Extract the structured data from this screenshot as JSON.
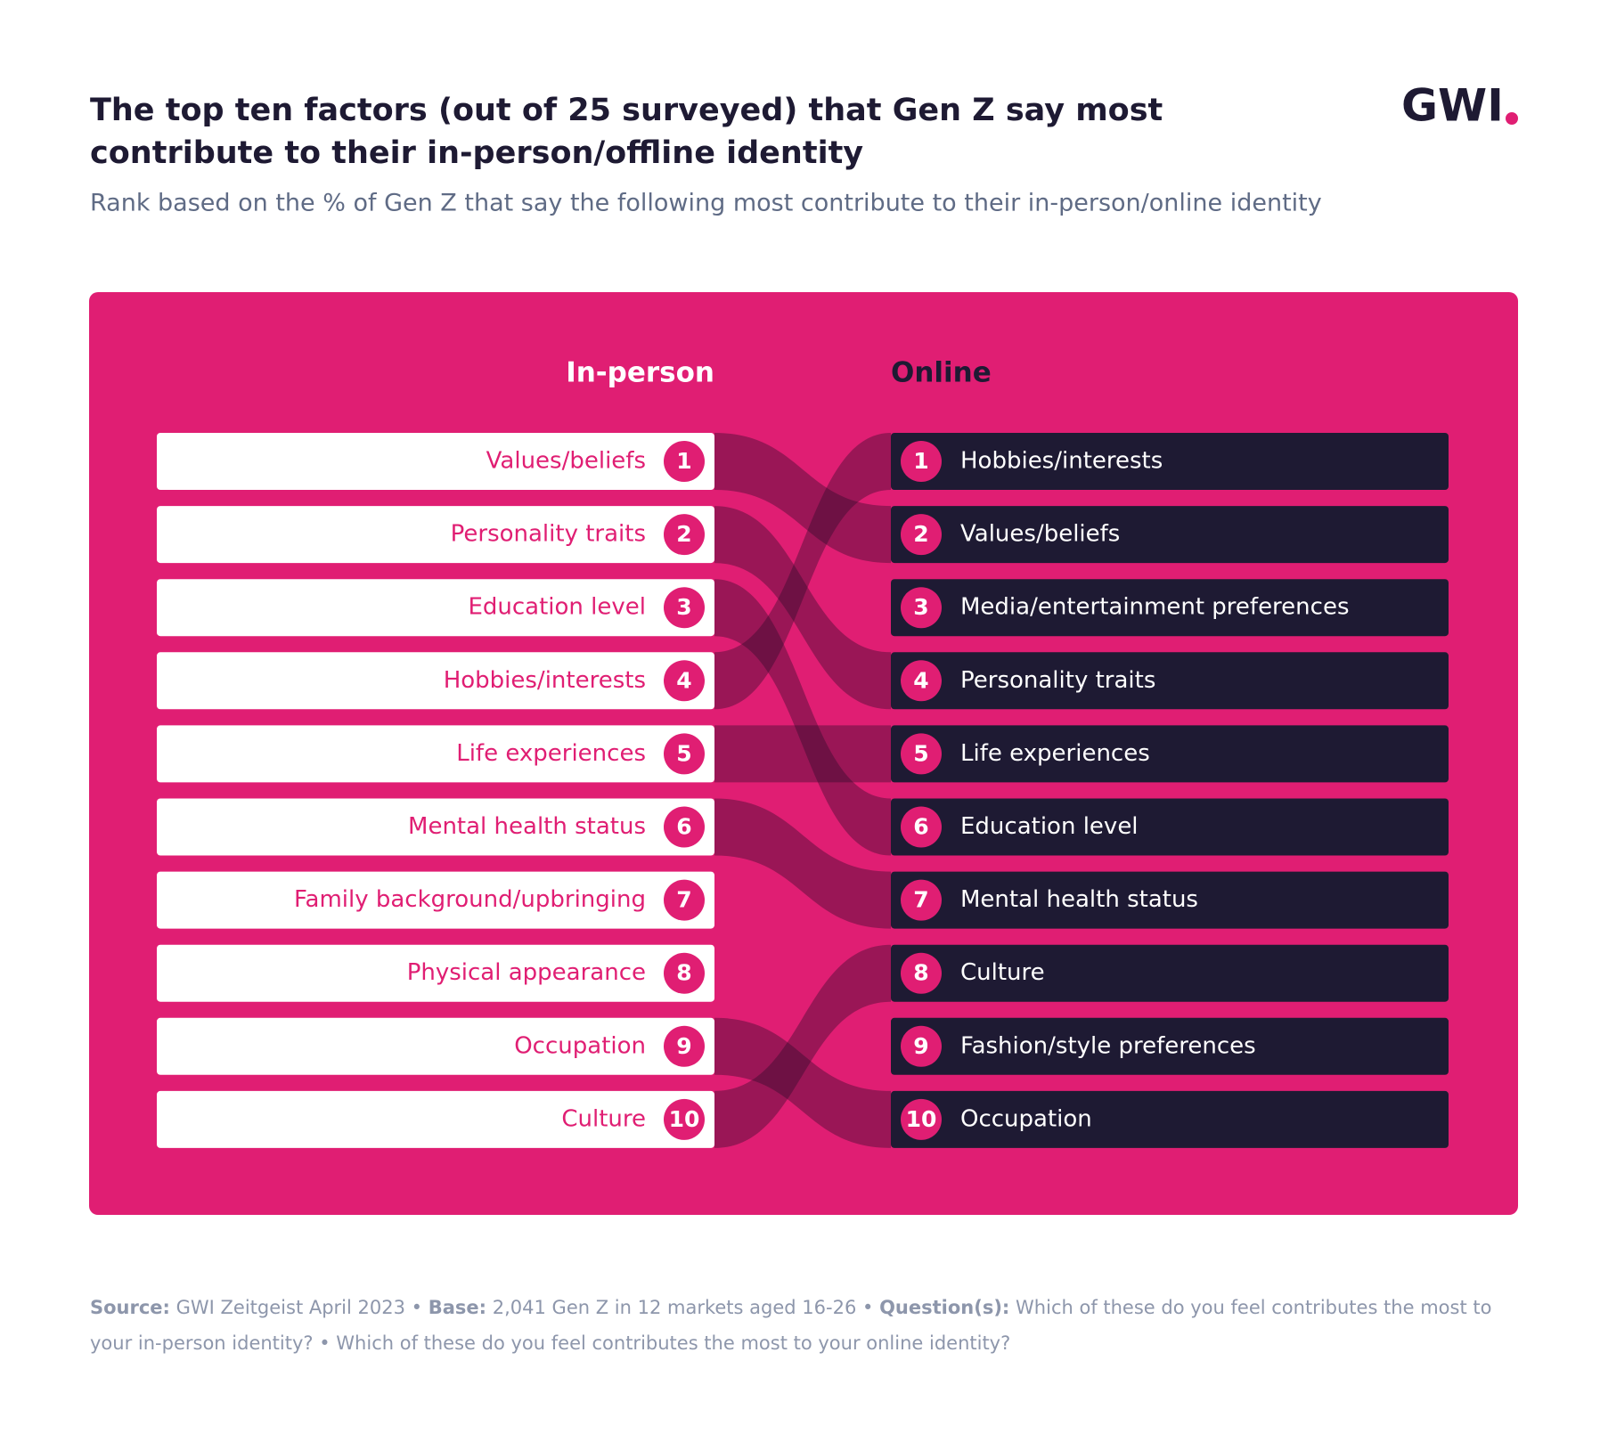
{
  "header": {
    "title_lines": [
      "The top ten factors (out of 25 surveyed) that Gen Z say most",
      "contribute to their in-person/offline identity"
    ],
    "subtitle": "Rank based on the % of Gen Z that say the following most contribute to their in-person/online identity",
    "logo": "GWI"
  },
  "columns": [
    {
      "heading": "In-person",
      "items": [
        {
          "rank": 1,
          "label": "Values/beliefs"
        },
        {
          "rank": 2,
          "label": "Personality traits"
        },
        {
          "rank": 3,
          "label": "Education level"
        },
        {
          "rank": 4,
          "label": "Hobbies/interests"
        },
        {
          "rank": 5,
          "label": "Life experiences"
        },
        {
          "rank": 6,
          "label": "Mental health status"
        },
        {
          "rank": 7,
          "label": "Family background/upbringing"
        },
        {
          "rank": 8,
          "label": "Physical appearance"
        },
        {
          "rank": 9,
          "label": "Occupation"
        },
        {
          "rank": 10,
          "label": "Culture"
        }
      ]
    },
    {
      "heading": "Online",
      "items": [
        {
          "rank": 1,
          "label": "Hobbies/interests"
        },
        {
          "rank": 2,
          "label": "Values/beliefs"
        },
        {
          "rank": 3,
          "label": "Media/entertainment preferences"
        },
        {
          "rank": 4,
          "label": "Personality traits"
        },
        {
          "rank": 5,
          "label": "Life experiences"
        },
        {
          "rank": 6,
          "label": "Education level"
        },
        {
          "rank": 7,
          "label": "Mental health status"
        },
        {
          "rank": 8,
          "label": "Culture"
        },
        {
          "rank": 9,
          "label": "Fashion/style preferences"
        },
        {
          "rank": 10,
          "label": "Occupation"
        }
      ]
    }
  ],
  "footer": {
    "separator": "•",
    "parts": [
      {
        "label": "Source:",
        "text": "GWI Zeitgeist April 2023"
      },
      {
        "label": "Base:",
        "text": "2,041 Gen Z in 12 markets aged 16-26"
      },
      {
        "label": "Question(s):",
        "text": "Which of these do you feel contributes the most to your in-person identity? • Which of these do you feel contributes the most to your online identity?"
      }
    ]
  }
}
